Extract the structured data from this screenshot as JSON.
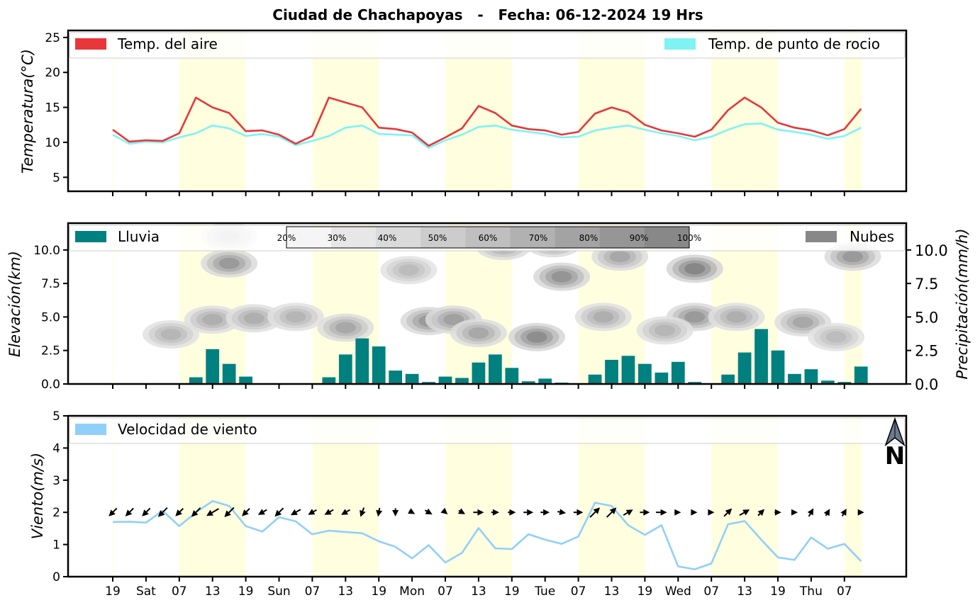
{
  "title": "Ciudad de Chachapoyas   -   Fecha: 06-12-2024 19 Hrs",
  "colors": {
    "temp_air": "#e8363a",
    "temp_dew": "#7ff3f3",
    "rain": "#00807f",
    "clouds": "#888888",
    "wind": "#90d0f8",
    "day_band": "#ffffe0",
    "arrow": "#000000"
  },
  "x_ticks": [
    "19",
    "Sat",
    "07",
    "13",
    "19",
    "Sun",
    "07",
    "13",
    "19",
    "Mon",
    "07",
    "13",
    "19",
    "Tue",
    "07",
    "13",
    "19",
    "Wed",
    "07",
    "13",
    "19",
    "Thu",
    "07"
  ],
  "day_bands": [
    [
      0,
      0.05
    ],
    [
      4,
      8
    ],
    [
      12,
      16
    ],
    [
      20,
      24
    ],
    [
      28,
      32
    ],
    [
      36,
      40
    ],
    [
      44,
      45.05
    ]
  ],
  "chart_data": [
    {
      "type": "line",
      "ylabel": "Temperatura(°C)",
      "ylim": [
        3,
        26
      ],
      "yticks": [
        5,
        10,
        15,
        20,
        25
      ],
      "x": [
        0,
        1,
        2,
        3,
        4,
        5,
        6,
        7,
        8,
        9,
        10,
        11,
        12,
        13,
        14,
        15,
        16,
        17,
        18,
        19,
        20,
        21,
        22,
        23,
        24,
        25,
        26,
        27,
        28,
        29,
        30,
        31,
        32,
        33,
        34,
        35,
        36,
        37,
        38,
        39,
        40,
        41,
        42,
        43,
        44,
        45
      ],
      "series": [
        {
          "name": "Temp. del aire",
          "values": [
            11.8,
            10.1,
            10.3,
            10.2,
            11.3,
            16.4,
            15.0,
            14.2,
            11.6,
            11.7,
            11.1,
            9.8,
            10.9,
            16.4,
            15.7,
            15.0,
            12.1,
            11.9,
            11.4,
            9.5,
            10.7,
            12.0,
            15.2,
            14.2,
            12.4,
            11.9,
            11.7,
            11.1,
            11.5,
            14.1,
            15.0,
            14.3,
            12.5,
            11.7,
            11.3,
            10.8,
            11.8,
            14.6,
            16.4,
            15.0,
            12.8,
            12.1,
            11.7,
            11.0,
            11.9,
            14.8
          ]
        },
        {
          "name": "Temp. de punto de rocio",
          "values": [
            11.1,
            9.8,
            10.1,
            10.0,
            10.7,
            11.3,
            12.4,
            12.0,
            10.9,
            11.2,
            10.8,
            9.6,
            10.2,
            10.9,
            12.1,
            12.4,
            11.2,
            11.1,
            11.0,
            9.2,
            10.3,
            11.1,
            12.2,
            12.4,
            11.8,
            11.5,
            11.2,
            10.7,
            10.8,
            11.7,
            12.1,
            12.4,
            11.8,
            11.3,
            10.9,
            10.3,
            10.8,
            11.8,
            12.6,
            12.7,
            11.8,
            11.5,
            11.1,
            10.5,
            10.9,
            12.1
          ]
        }
      ],
      "legend": [
        "Temp. del aire",
        "Temp. de punto de rocio"
      ]
    },
    {
      "type": "bar",
      "ylabel": "Elevación(km)",
      "ylabel_right": "Precipitación(mm/h)",
      "ylim": [
        0,
        12
      ],
      "yticks": [
        "0.0",
        "2.5",
        "5.0",
        "7.5",
        "10.0"
      ],
      "series": [
        {
          "name": "Lluvia",
          "values": [
            0.0,
            0.0,
            0.0,
            0.05,
            0.05,
            0.5,
            2.6,
            1.5,
            0.55,
            0.05,
            0.05,
            0.05,
            0.05,
            0.5,
            2.2,
            3.4,
            2.8,
            1.0,
            0.75,
            0.15,
            0.55,
            0.45,
            1.6,
            2.2,
            1.2,
            0.2,
            0.4,
            0.1,
            0.05,
            0.7,
            1.8,
            2.1,
            1.5,
            0.85,
            1.65,
            0.15,
            0.05,
            0.7,
            2.35,
            4.1,
            2.5,
            0.75,
            1.1,
            0.25,
            0.15,
            1.3
          ]
        }
      ],
      "legend": [
        "Lluvia",
        "Nubes"
      ],
      "colorbar_ticks": [
        "20%",
        "30%",
        "40%",
        "50%",
        "60%",
        "70%",
        "80%",
        "90%",
        "100%"
      ],
      "clouds": [
        {
          "x": 7,
          "y": 9.0,
          "level": 0.6
        },
        {
          "x": 7,
          "y": 11.0,
          "level": 0.3
        },
        {
          "x": 3.5,
          "y": 3.7,
          "level": 0.4
        },
        {
          "x": 6,
          "y": 4.8,
          "level": 0.45
        },
        {
          "x": 8.5,
          "y": 4.9,
          "level": 0.45
        },
        {
          "x": 11,
          "y": 5.0,
          "level": 0.4
        },
        {
          "x": 14,
          "y": 4.2,
          "level": 0.5
        },
        {
          "x": 19,
          "y": 4.7,
          "level": 0.6
        },
        {
          "x": 20.5,
          "y": 4.8,
          "level": 0.55
        },
        {
          "x": 17.8,
          "y": 8.5,
          "level": 0.35
        },
        {
          "x": 22,
          "y": 3.8,
          "level": 0.5
        },
        {
          "x": 25.5,
          "y": 3.5,
          "level": 0.7
        },
        {
          "x": 27,
          "y": 8.0,
          "level": 0.65
        },
        {
          "x": 26.5,
          "y": 10.5,
          "level": 0.55
        },
        {
          "x": 23.5,
          "y": 10.3,
          "level": 0.5
        },
        {
          "x": 30.5,
          "y": 9.5,
          "level": 0.5
        },
        {
          "x": 29.5,
          "y": 5.0,
          "level": 0.45
        },
        {
          "x": 35,
          "y": 8.6,
          "level": 0.75
        },
        {
          "x": 35,
          "y": 5.0,
          "level": 0.6
        },
        {
          "x": 37.5,
          "y": 5.0,
          "level": 0.45
        },
        {
          "x": 41.5,
          "y": 4.6,
          "level": 0.5
        },
        {
          "x": 44.5,
          "y": 9.5,
          "level": 0.6
        },
        {
          "x": 43.5,
          "y": 3.5,
          "level": 0.35
        },
        {
          "x": 33.2,
          "y": 4.0,
          "level": 0.4
        }
      ]
    },
    {
      "type": "line",
      "ylabel": "Viento(m/s)",
      "ylim": [
        0,
        5
      ],
      "yticks": [
        0,
        1,
        2,
        3,
        4,
        5
      ],
      "series": [
        {
          "name": "Velocidad de viento",
          "values": [
            1.7,
            1.71,
            1.68,
            2.05,
            1.57,
            2.0,
            2.35,
            2.2,
            1.57,
            1.4,
            1.85,
            1.72,
            1.32,
            1.43,
            1.39,
            1.35,
            1.1,
            0.93,
            0.57,
            0.98,
            0.44,
            0.74,
            1.51,
            0.88,
            0.86,
            1.32,
            1.15,
            1.02,
            1.25,
            2.3,
            2.2,
            1.6,
            1.3,
            1.6,
            0.32,
            0.23,
            0.41,
            1.63,
            1.73,
            1.15,
            0.6,
            0.52,
            1.22,
            0.87,
            1.02,
            0.48
          ]
        }
      ],
      "arrow_directions_deg": [
        315,
        315,
        315,
        315,
        315,
        315,
        300,
        315,
        315,
        300,
        315,
        300,
        300,
        300,
        300,
        340,
        350,
        360,
        60,
        60,
        50,
        60,
        90,
        90,
        90,
        90,
        90,
        80,
        90,
        135,
        135,
        120,
        90,
        90,
        90,
        90,
        90,
        135,
        120,
        135,
        90,
        90,
        150,
        150,
        150,
        90
      ],
      "arrow_speeds": [
        1.7,
        1.71,
        1.68,
        2.05,
        1.57,
        2.0,
        2.35,
        2.2,
        1.57,
        1.4,
        1.85,
        1.72,
        1.32,
        1.43,
        1.39,
        1.35,
        1.1,
        0.93,
        0.57,
        0.98,
        0.44,
        0.74,
        1.51,
        0.88,
        0.86,
        1.32,
        1.15,
        1.02,
        1.25,
        2.3,
        2.2,
        1.6,
        1.3,
        1.6,
        0.32,
        0.23,
        0.41,
        1.63,
        1.73,
        1.15,
        0.6,
        0.52,
        1.22,
        0.87,
        1.02,
        0.48
      ],
      "legend": [
        "Velocidad de viento"
      ],
      "north_label": "N"
    }
  ]
}
